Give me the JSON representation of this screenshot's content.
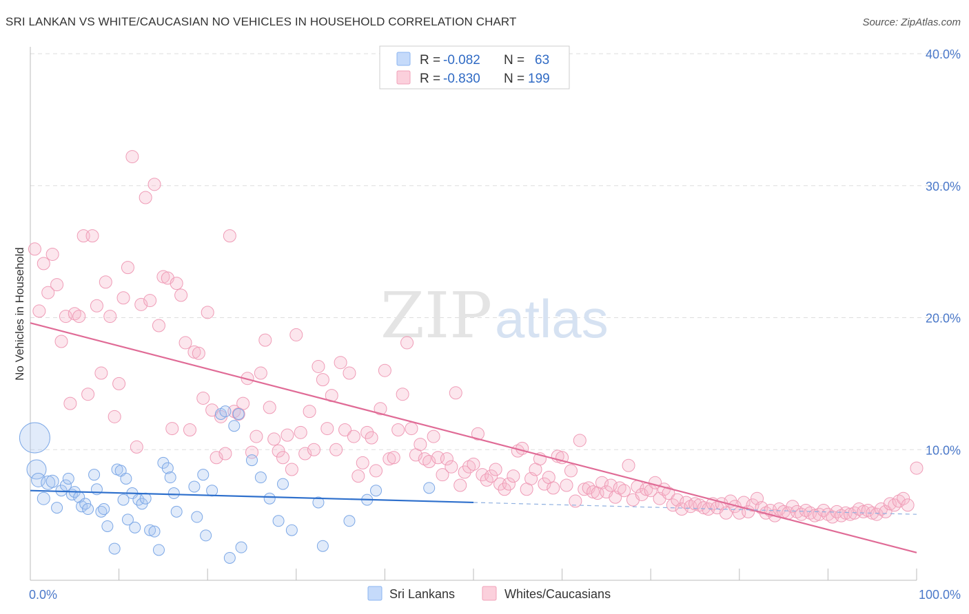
{
  "title": "SRI LANKAN VS WHITE/CAUCASIAN NO VEHICLES IN HOUSEHOLD CORRELATION CHART",
  "source": "Source: ZipAtlas.com",
  "watermark": {
    "zip": "ZIP",
    "atlas": "atlas"
  },
  "legend": {
    "r_label": "R =",
    "n_label": "N =",
    "series": [
      {
        "r": "-0.082",
        "n": "63",
        "color": "#8ab4f0",
        "fill": "#c5dafa"
      },
      {
        "r": "-0.830",
        "n": "199",
        "color": "#f0a0b8",
        "fill": "#fbd0dc"
      }
    ]
  },
  "bottom_legend": [
    "Sri Lankans",
    "Whites/Caucasians"
  ],
  "colors": {
    "blue_line": "#2d6fcc",
    "pink_line": "#e06b96",
    "blue_point": "#7ba7e6",
    "pink_point": "#ef9bb6",
    "grid": "#dddddd"
  },
  "chart_data": {
    "type": "scatter",
    "xlabel": "",
    "ylabel": "No Vehicles in Household",
    "xlim": [
      0,
      100
    ],
    "ylim": [
      0,
      40
    ],
    "x_tick_labels": [
      "0.0%",
      "100.0%"
    ],
    "y_ticks": [
      10,
      20,
      30,
      40
    ],
    "y_tick_labels": [
      "10.0%",
      "20.0%",
      "30.0%",
      "40.0%"
    ],
    "grid": true,
    "series": [
      {
        "name": "Sri Lankans",
        "points": [
          [
            0.5,
            10.9,
            22
          ],
          [
            0.7,
            8.5,
            14
          ],
          [
            0.9,
            7.7,
            10
          ],
          [
            1.5,
            6.3,
            9
          ],
          [
            2.0,
            7.5,
            10
          ],
          [
            2.5,
            7.6,
            9
          ],
          [
            3.0,
            5.6,
            8
          ],
          [
            3.5,
            6.9,
            8
          ],
          [
            4.0,
            7.3,
            8
          ],
          [
            4.3,
            7.8,
            8
          ],
          [
            4.7,
            6.6,
            8
          ],
          [
            5.0,
            6.8,
            8
          ],
          [
            5.5,
            6.4,
            8
          ],
          [
            5.8,
            5.7,
            8
          ],
          [
            6.2,
            5.9,
            8
          ],
          [
            6.5,
            5.5,
            8
          ],
          [
            7.2,
            8.1,
            8
          ],
          [
            7.5,
            7.0,
            8
          ],
          [
            8.0,
            5.3,
            8
          ],
          [
            8.3,
            5.5,
            8
          ],
          [
            8.7,
            4.2,
            8
          ],
          [
            9.5,
            2.5,
            8
          ],
          [
            9.8,
            8.5,
            8
          ],
          [
            10.2,
            8.4,
            8
          ],
          [
            10.5,
            6.2,
            8
          ],
          [
            10.8,
            7.8,
            8
          ],
          [
            11.0,
            4.7,
            8
          ],
          [
            11.5,
            6.7,
            8
          ],
          [
            11.8,
            4.1,
            8
          ],
          [
            12.2,
            6.2,
            8
          ],
          [
            12.6,
            5.9,
            8
          ],
          [
            13.0,
            6.3,
            8
          ],
          [
            13.5,
            3.9,
            8
          ],
          [
            14.0,
            3.8,
            8
          ],
          [
            14.5,
            2.4,
            8
          ],
          [
            15.0,
            9.0,
            8
          ],
          [
            15.5,
            8.6,
            8
          ],
          [
            15.8,
            7.9,
            8
          ],
          [
            16.2,
            6.7,
            8
          ],
          [
            16.5,
            5.3,
            8
          ],
          [
            18.5,
            7.2,
            8
          ],
          [
            18.8,
            4.9,
            8
          ],
          [
            19.5,
            8.1,
            8
          ],
          [
            19.8,
            3.5,
            8
          ],
          [
            20.5,
            6.9,
            8
          ],
          [
            21.5,
            12.7,
            8
          ],
          [
            22.0,
            12.9,
            8
          ],
          [
            22.5,
            1.8,
            8
          ],
          [
            23.0,
            11.8,
            8
          ],
          [
            23.5,
            12.7,
            8
          ],
          [
            23.8,
            2.6,
            8
          ],
          [
            25.0,
            9.2,
            8
          ],
          [
            26.0,
            7.9,
            8
          ],
          [
            27.0,
            6.3,
            8
          ],
          [
            28.0,
            4.6,
            8
          ],
          [
            28.5,
            7.4,
            8
          ],
          [
            29.5,
            3.9,
            8
          ],
          [
            32.5,
            6.0,
            8
          ],
          [
            33.0,
            2.7,
            8
          ],
          [
            36.0,
            4.6,
            8
          ],
          [
            38.0,
            6.2,
            8
          ],
          [
            39.0,
            6.9,
            8
          ],
          [
            45.0,
            7.1,
            8
          ]
        ],
        "trend": {
          "x0": 0,
          "y0": 6.9,
          "x1": 50,
          "y1": 6.0,
          "dash_to": 100,
          "dash_y": 5.1
        }
      },
      {
        "name": "Whites/Caucasians",
        "points": [
          [
            0.5,
            25.2
          ],
          [
            1.0,
            20.5
          ],
          [
            1.5,
            24.1
          ],
          [
            2.0,
            21.9
          ],
          [
            2.5,
            24.8
          ],
          [
            3.0,
            22.5
          ],
          [
            3.5,
            18.2
          ],
          [
            4.0,
            20.1
          ],
          [
            4.5,
            13.5
          ],
          [
            5.0,
            20.3
          ],
          [
            5.5,
            20.1
          ],
          [
            6.0,
            26.2
          ],
          [
            6.5,
            14.2
          ],
          [
            7.0,
            26.2
          ],
          [
            7.5,
            20.9
          ],
          [
            8.0,
            15.8
          ],
          [
            8.5,
            22.7
          ],
          [
            9.0,
            20.1
          ],
          [
            9.5,
            12.5
          ],
          [
            10.0,
            15.0
          ],
          [
            10.5,
            21.5
          ],
          [
            11.0,
            23.8
          ],
          [
            11.5,
            32.2
          ],
          [
            12.0,
            10.2
          ],
          [
            12.5,
            21.0
          ],
          [
            13.0,
            29.1
          ],
          [
            13.5,
            21.3
          ],
          [
            14.0,
            30.1
          ],
          [
            14.5,
            19.4
          ],
          [
            15.0,
            23.1
          ],
          [
            15.5,
            23.0
          ],
          [
            16.0,
            11.6
          ],
          [
            16.5,
            22.6
          ],
          [
            17.0,
            21.7
          ],
          [
            17.5,
            18.1
          ],
          [
            18.0,
            11.5
          ],
          [
            18.5,
            17.4
          ],
          [
            19.0,
            17.3
          ],
          [
            19.5,
            13.9
          ],
          [
            20.0,
            20.4
          ],
          [
            20.5,
            13.0
          ],
          [
            21.0,
            9.4
          ],
          [
            21.5,
            12.5
          ],
          [
            22.0,
            9.7
          ],
          [
            22.5,
            26.2
          ],
          [
            23.0,
            12.9
          ],
          [
            23.5,
            12.7
          ],
          [
            24.0,
            13.5
          ],
          [
            24.5,
            15.4
          ],
          [
            25.0,
            9.8
          ],
          [
            25.5,
            11.0
          ],
          [
            26.0,
            15.8
          ],
          [
            26.5,
            18.3
          ],
          [
            27.0,
            13.2
          ],
          [
            27.5,
            10.8
          ],
          [
            28.0,
            9.9
          ],
          [
            28.5,
            9.4
          ],
          [
            29.0,
            11.1
          ],
          [
            29.5,
            8.5
          ],
          [
            30.0,
            18.7
          ],
          [
            30.5,
            11.3
          ],
          [
            31.0,
            9.7
          ],
          [
            31.5,
            12.9
          ],
          [
            32.0,
            10.0
          ],
          [
            32.5,
            16.3
          ],
          [
            33.0,
            15.3
          ],
          [
            33.5,
            11.6
          ],
          [
            34.0,
            14.1
          ],
          [
            34.5,
            10.0
          ],
          [
            35.0,
            16.6
          ],
          [
            35.5,
            11.5
          ],
          [
            36.0,
            15.8
          ],
          [
            36.5,
            11.0
          ],
          [
            37.0,
            8.0
          ],
          [
            37.5,
            9.0
          ],
          [
            38.0,
            11.3
          ],
          [
            38.5,
            10.9
          ],
          [
            39.0,
            8.4
          ],
          [
            39.5,
            13.1
          ],
          [
            40.0,
            16.0
          ],
          [
            40.5,
            9.3
          ],
          [
            41.0,
            9.4
          ],
          [
            41.5,
            11.5
          ],
          [
            42.0,
            14.2
          ],
          [
            42.5,
            18.1
          ],
          [
            43.0,
            11.6
          ],
          [
            43.5,
            9.6
          ],
          [
            44.0,
            10.4
          ],
          [
            44.5,
            9.3
          ],
          [
            45.0,
            9.1
          ],
          [
            45.5,
            11.0
          ],
          [
            46.0,
            9.4
          ],
          [
            46.5,
            8.1
          ],
          [
            47.0,
            9.3
          ],
          [
            47.5,
            8.7
          ],
          [
            48.0,
            14.3
          ],
          [
            48.5,
            7.3
          ],
          [
            49.0,
            8.3
          ],
          [
            49.5,
            8.7
          ],
          [
            50.0,
            8.9
          ],
          [
            50.5,
            11.2
          ],
          [
            51.0,
            8.1
          ],
          [
            51.5,
            7.7
          ],
          [
            52.0,
            8.0
          ],
          [
            52.5,
            8.5
          ],
          [
            53.0,
            7.4
          ],
          [
            53.5,
            7.0
          ],
          [
            54.0,
            7.4
          ],
          [
            54.5,
            8.0
          ],
          [
            55.0,
            9.9
          ],
          [
            55.5,
            10.1
          ],
          [
            56.0,
            7.0
          ],
          [
            56.5,
            7.8
          ],
          [
            57.0,
            8.5
          ],
          [
            57.5,
            9.3
          ],
          [
            58.0,
            7.4
          ],
          [
            58.5,
            7.9
          ],
          [
            59.0,
            7.1
          ],
          [
            59.5,
            9.5
          ],
          [
            60.0,
            9.4
          ],
          [
            60.5,
            7.3
          ],
          [
            61.0,
            8.4
          ],
          [
            61.5,
            6.1
          ],
          [
            62.0,
            10.7
          ],
          [
            62.5,
            7.0
          ],
          [
            63.0,
            7.1
          ],
          [
            63.5,
            6.8
          ],
          [
            64.0,
            6.7
          ],
          [
            64.5,
            7.5
          ],
          [
            65.0,
            6.8
          ],
          [
            65.5,
            7.3
          ],
          [
            66.0,
            6.4
          ],
          [
            66.5,
            7.1
          ],
          [
            67.0,
            6.9
          ],
          [
            67.5,
            8.8
          ],
          [
            68.0,
            6.2
          ],
          [
            68.5,
            7.2
          ],
          [
            69.0,
            6.6
          ],
          [
            69.5,
            7.0
          ],
          [
            70.0,
            6.9
          ],
          [
            70.5,
            7.5
          ],
          [
            71.0,
            6.3
          ],
          [
            71.5,
            7.0
          ],
          [
            72.0,
            6.7
          ],
          [
            72.5,
            5.8
          ],
          [
            73.0,
            6.2
          ],
          [
            73.5,
            5.5
          ],
          [
            74.0,
            6.0
          ],
          [
            74.5,
            5.7
          ],
          [
            75.0,
            5.9
          ],
          [
            75.5,
            5.8
          ],
          [
            76.0,
            5.6
          ],
          [
            76.5,
            5.5
          ],
          [
            77.0,
            5.9
          ],
          [
            77.5,
            5.6
          ],
          [
            78.0,
            5.9
          ],
          [
            78.5,
            5.2
          ],
          [
            79.0,
            6.1
          ],
          [
            79.5,
            5.7
          ],
          [
            80.0,
            5.2
          ],
          [
            80.5,
            6.0
          ],
          [
            81.0,
            5.3
          ],
          [
            81.5,
            5.8
          ],
          [
            82.0,
            6.3
          ],
          [
            82.5,
            5.6
          ],
          [
            83.0,
            5.2
          ],
          [
            83.5,
            5.4
          ],
          [
            84.0,
            5.0
          ],
          [
            84.5,
            5.5
          ],
          [
            85.0,
            5.3
          ],
          [
            85.5,
            5.2
          ],
          [
            86.0,
            5.7
          ],
          [
            86.5,
            5.3
          ],
          [
            87.0,
            5.1
          ],
          [
            87.5,
            5.4
          ],
          [
            88.0,
            5.2
          ],
          [
            88.5,
            5.0
          ],
          [
            89.0,
            5.1
          ],
          [
            89.5,
            5.4
          ],
          [
            90.0,
            5.1
          ],
          [
            90.5,
            4.9
          ],
          [
            91.0,
            5.3
          ],
          [
            91.5,
            5.0
          ],
          [
            92.0,
            5.2
          ],
          [
            92.5,
            5.1
          ],
          [
            93.0,
            5.2
          ],
          [
            93.5,
            5.5
          ],
          [
            94.0,
            5.3
          ],
          [
            94.5,
            5.4
          ],
          [
            95.0,
            5.2
          ],
          [
            95.5,
            5.1
          ],
          [
            96.0,
            5.5
          ],
          [
            96.5,
            5.3
          ],
          [
            97.0,
            5.9
          ],
          [
            97.5,
            5.8
          ],
          [
            98.0,
            6.1
          ],
          [
            98.5,
            6.3
          ],
          [
            99.0,
            5.8
          ],
          [
            100.0,
            8.6
          ]
        ],
        "trend": {
          "x0": 0,
          "y0": 19.6,
          "x1": 100,
          "y1": 2.2
        }
      }
    ]
  }
}
